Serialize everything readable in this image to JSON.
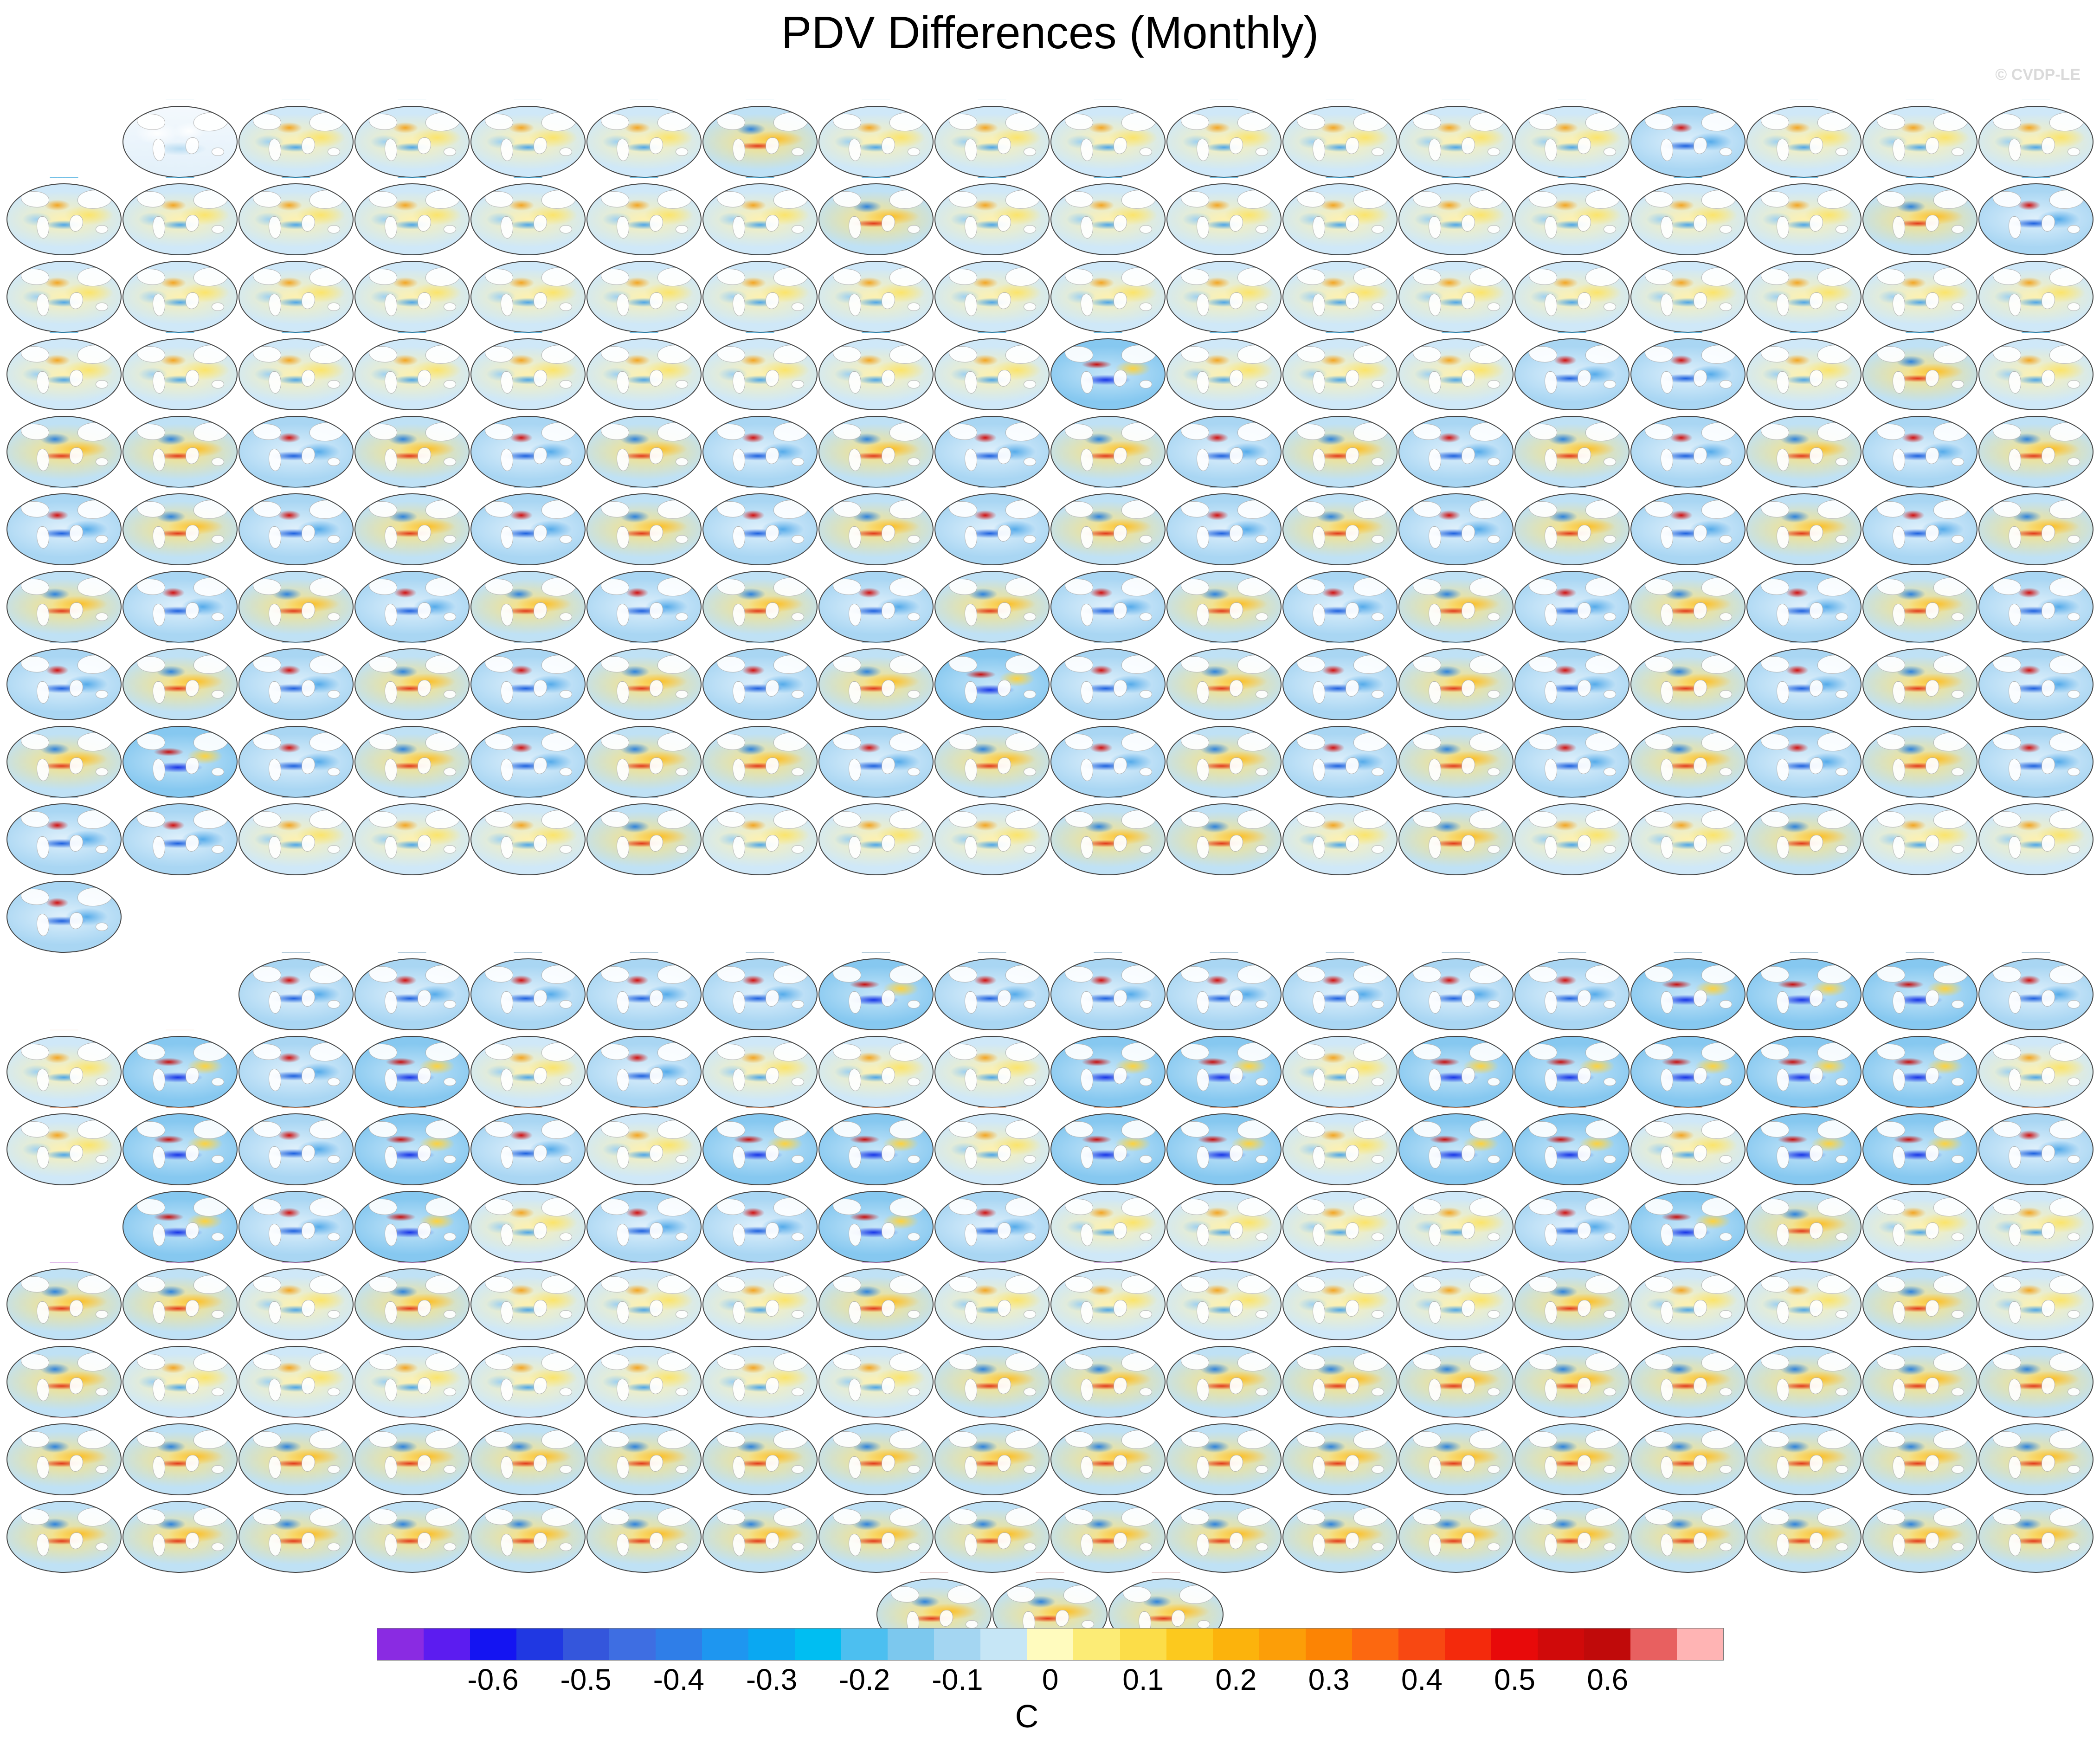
{
  "title": "PDV Differences (Monthly)",
  "watermark": "© CVDP-LE",
  "colorbar": {
    "units": "C",
    "ticks": [
      "-0.6",
      "-0.5",
      "-0.4",
      "-0.3",
      "-0.2",
      "-0.1",
      "0",
      "0.1",
      "0.2",
      "0.3",
      "0.4",
      "0.5",
      "0.6"
    ],
    "colors": [
      "#8a2be2",
      "#5c1cf0",
      "#1414f2",
      "#2038e2",
      "#3456dc",
      "#3e6ee2",
      "#2f7ee8",
      "#1e96f0",
      "#0aa8f2",
      "#00bef2",
      "#4cbff0",
      "#7cc8ee",
      "#a4d6f2",
      "#c6e6f6",
      "#fffbbe",
      "#fcec76",
      "#fcdd48",
      "#fcc91e",
      "#fcb30c",
      "#fc9e08",
      "#fc8404",
      "#fc6810",
      "#f84812",
      "#f42a0c",
      "#e80a0a",
      "#d00a0a",
      "#c00a0a",
      "#e86060",
      "#ffb4b4"
    ]
  },
  "chart_data": {
    "type": "heatmap",
    "title": "PDV Differences (Monthly)",
    "colorbar_units": "C",
    "colorbar_range": [
      -0.7,
      0.7
    ],
    "colorbar_ticks": [
      -0.6,
      -0.5,
      -0.4,
      -0.3,
      -0.2,
      -0.1,
      0,
      0.1,
      0.2,
      0.3,
      0.4,
      0.5,
      0.6
    ],
    "panel_grid": "18 columns x 18 rows of global SST difference maps plus 3 centered maps",
    "panel_rows": [
      {
        "first_col": 1,
        "count": 17,
        "label_color": "#1f9bd7",
        "patterns": [
          "obs",
          "mixed",
          "mixed",
          "mixed",
          "mixed",
          "warm",
          "mixed",
          "mixed",
          "mixed",
          "mixed",
          "mixed",
          "mixed",
          "mixed",
          "cold",
          "mixed",
          "mixed",
          "mixed"
        ]
      },
      {
        "first_col": 0,
        "count": 18,
        "label_color": "#1f9bd7",
        "patterns": [
          "mixed",
          "mixed",
          "mixed",
          "mixed",
          "mixed",
          "mixed",
          "mixed",
          "warm",
          "mixed",
          "mixed",
          "mixed",
          "mixed",
          "mixed",
          "mixed",
          "mixed",
          "mixed",
          "warm",
          "cold"
        ]
      },
      {
        "first_col": 0,
        "count": 18,
        "label_color": "#1f9bd7",
        "patterns": [
          "mixed",
          "mixed",
          "mixed",
          "mixed",
          "mixed",
          "mixed",
          "mixed",
          "mixed",
          "mixed",
          "mixed",
          "mixed",
          "mixed",
          "mixed",
          "mixed",
          "mixed",
          "mixed",
          "mixed",
          "mixed"
        ]
      },
      {
        "first_col": 0,
        "count": 18,
        "label_color": "#1f9bd7",
        "patterns": [
          "mixed",
          "mixed",
          "mixed",
          "mixed",
          "mixed",
          "mixed",
          "mixed",
          "mixed",
          "mixed",
          "strong",
          "mixed",
          "mixed",
          "mixed",
          "cold",
          "cold",
          "mixed",
          "warm",
          "mixed"
        ]
      },
      {
        "first_col": 0,
        "count": 18,
        "label_color": "#8fb8d0",
        "patterns": [
          "warm",
          "warm",
          "cold",
          "warm",
          "cold",
          "warm",
          "cold",
          "warm",
          "cold",
          "warm",
          "cold",
          "warm",
          "cold",
          "warm",
          "cold",
          "warm",
          "cold",
          "warm"
        ]
      },
      {
        "first_col": 0,
        "count": 18,
        "label_color": "#8fb8d0",
        "patterns": [
          "cold",
          "warm",
          "cold",
          "warm",
          "cold",
          "warm",
          "cold",
          "warm",
          "cold",
          "warm",
          "cold",
          "warm",
          "cold",
          "warm",
          "cold",
          "warm",
          "cold",
          "warm"
        ]
      },
      {
        "first_col": 0,
        "count": 18,
        "label_color": "#8fb8d0",
        "patterns": [
          "warm",
          "cold",
          "warm",
          "cold",
          "warm",
          "cold",
          "warm",
          "cold",
          "warm",
          "cold",
          "warm",
          "cold",
          "warm",
          "cold",
          "warm",
          "cold",
          "warm",
          "cold"
        ]
      },
      {
        "first_col": 0,
        "count": 18,
        "label_color": "#8fb8d0",
        "patterns": [
          "cold",
          "warm",
          "cold",
          "warm",
          "cold",
          "warm",
          "cold",
          "warm",
          "strong",
          "cold",
          "warm",
          "cold",
          "warm",
          "cold",
          "warm",
          "cold",
          "warm",
          "cold"
        ]
      },
      {
        "first_col": 0,
        "count": 18,
        "label_color": "#8fb8d0",
        "patterns": [
          "warm",
          "strong",
          "cold",
          "warm",
          "cold",
          "warm",
          "warm",
          "cold",
          "warm",
          "cold",
          "warm",
          "cold",
          "warm",
          "cold",
          "warm",
          "cold",
          "warm",
          "cold"
        ]
      },
      {
        "first_col": 0,
        "count": 18,
        "label_color": "#7fa5bf",
        "patterns": [
          "cold",
          "cold",
          "mixed",
          "mixed",
          "mixed",
          "warm",
          "mixed",
          "mixed",
          "mixed",
          "warm",
          "warm",
          "mixed",
          "warm",
          "mixed",
          "mixed",
          "warm",
          "mixed",
          "mixed"
        ]
      },
      {
        "first_col": 0,
        "count": 1,
        "label_color": "#7fa5bf",
        "patterns": [
          "cold"
        ]
      },
      {
        "first_col": 2,
        "count": 16,
        "label_color": "#7fa5bf",
        "patterns": [
          "cold",
          "cold",
          "cold",
          "cold",
          "cold",
          "strong",
          "cold",
          "cold",
          "cold",
          "cold",
          "cold",
          "cold",
          "strong",
          "strong",
          "strong",
          "cold"
        ]
      },
      {
        "first_col": 0,
        "count": 18,
        "label_color": "#e08a58",
        "patterns": [
          "mixed",
          "strong",
          "cold",
          "strong",
          "mixed",
          "cold",
          "mixed",
          "mixed",
          "mixed",
          "strong",
          "strong",
          "mixed",
          "strong",
          "strong",
          "strong",
          "strong",
          "strong",
          "mixed"
        ]
      },
      {
        "first_col": 0,
        "count": 18,
        "label_color": "#e08a58",
        "patterns": [
          "mixed",
          "strong",
          "cold",
          "strong",
          "cold",
          "mixed",
          "strong",
          "strong",
          "mixed",
          "strong",
          "strong",
          "mixed",
          "strong",
          "strong",
          "mixed",
          "strong",
          "strong",
          "cold"
        ]
      },
      {
        "first_col": 1,
        "count": 17,
        "label_color": "#e08a58",
        "patterns": [
          "strong",
          "cold",
          "strong",
          "mixed",
          "cold",
          "cold",
          "strong",
          "cold",
          "mixed",
          "mixed",
          "mixed",
          "mixed",
          "cold",
          "strong",
          "warm",
          "mixed",
          "mixed"
        ]
      },
      {
        "first_col": 0,
        "count": 18,
        "label_color": "#c98ad8",
        "patterns": [
          "warm",
          "warm",
          "mixed",
          "warm",
          "mixed",
          "mixed",
          "mixed",
          "warm",
          "mixed",
          "mixed",
          "mixed",
          "mixed",
          "mixed",
          "warm",
          "mixed",
          "mixed",
          "warm",
          "mixed"
        ]
      },
      {
        "first_col": 0,
        "count": 18,
        "label_color": "#c98ad8",
        "patterns": [
          "warm",
          "mixed",
          "mixed",
          "mixed",
          "mixed",
          "mixed",
          "mixed",
          "mixed",
          "warm",
          "warm",
          "warm",
          "warm",
          "warm",
          "warm",
          "warm",
          "warm",
          "warm",
          "warm"
        ]
      },
      {
        "first_col": 0,
        "count": 18,
        "label_color": "#d8b0b0",
        "patterns": [
          "warm",
          "warm",
          "warm",
          "warm",
          "warm",
          "warm",
          "warm",
          "warm",
          "warm",
          "warm",
          "warm",
          "warm",
          "warm",
          "warm",
          "warm",
          "warm",
          "warm",
          "warm"
        ]
      },
      {
        "first_col": 0,
        "count": 18,
        "label_color": "#d8b0b0",
        "patterns": [
          "warm",
          "warm",
          "warm",
          "warm",
          "warm",
          "warm",
          "warm",
          "warm",
          "warm",
          "warm",
          "warm",
          "warm",
          "warm",
          "warm",
          "warm",
          "warm",
          "warm",
          "warm"
        ]
      },
      {
        "first_col": 7.5,
        "count": 3,
        "label_color": "#d8b0b0",
        "patterns": [
          "warm",
          "warm",
          "warm"
        ]
      }
    ]
  }
}
